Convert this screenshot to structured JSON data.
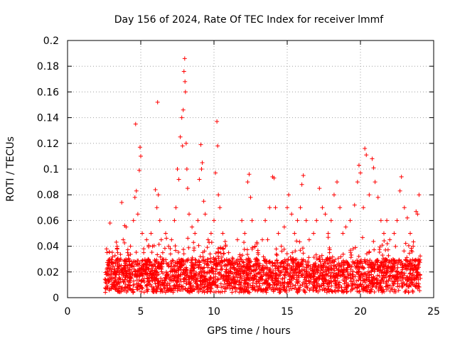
{
  "chart_data": {
    "type": "scatter",
    "title": "Day 156 of 2024, Rate Of TEC Index for receiver lmmf",
    "xlabel": "GPS time / hours",
    "ylabel": "ROTI / TECUs",
    "xlim": [
      0,
      25
    ],
    "ylim": [
      0,
      0.2
    ],
    "x_ticks": [
      "0",
      "5",
      "10",
      "15",
      "20",
      "25"
    ],
    "y_ticks": [
      "0",
      "0.02",
      "0.04",
      "0.06",
      "0.08",
      "0.1",
      "0.12",
      "0.14",
      "0.16",
      "0.18",
      "0.2"
    ],
    "grid": true,
    "marker": "plus",
    "color": "#ff0000",
    "series": [
      {
        "points": [
          [
            2.6,
            0.012
          ],
          [
            2.7,
            0.018
          ],
          [
            2.8,
            0.025
          ],
          [
            2.9,
            0.058
          ],
          [
            3.0,
            0.015
          ],
          [
            3.2,
            0.022
          ],
          [
            3.4,
            0.03
          ],
          [
            3.5,
            0.018
          ],
          [
            3.7,
            0.074
          ],
          [
            3.8,
            0.045
          ],
          [
            3.9,
            0.056
          ],
          [
            4.0,
            0.055
          ],
          [
            4.1,
            0.035
          ],
          [
            4.2,
            0.028
          ],
          [
            4.3,
            0.04
          ],
          [
            4.4,
            0.02
          ],
          [
            4.5,
            0.06
          ],
          [
            4.6,
            0.078
          ],
          [
            4.65,
            0.135
          ],
          [
            4.7,
            0.083
          ],
          [
            4.8,
            0.065
          ],
          [
            4.9,
            0.099
          ],
          [
            4.95,
            0.117
          ],
          [
            5.0,
            0.11
          ],
          [
            5.1,
            0.05
          ],
          [
            5.2,
            0.035
          ],
          [
            5.4,
            0.045
          ],
          [
            5.5,
            0.03
          ],
          [
            5.7,
            0.05
          ],
          [
            5.8,
            0.04
          ],
          [
            6.0,
            0.084
          ],
          [
            6.1,
            0.07
          ],
          [
            6.15,
            0.152
          ],
          [
            6.2,
            0.08
          ],
          [
            6.3,
            0.06
          ],
          [
            6.4,
            0.045
          ],
          [
            6.5,
            0.035
          ],
          [
            6.7,
            0.05
          ],
          [
            6.9,
            0.04
          ],
          [
            7.1,
            0.045
          ],
          [
            7.3,
            0.06
          ],
          [
            7.4,
            0.07
          ],
          [
            7.5,
            0.1
          ],
          [
            7.6,
            0.092
          ],
          [
            7.7,
            0.125
          ],
          [
            7.8,
            0.14
          ],
          [
            7.85,
            0.118
          ],
          [
            7.9,
            0.146
          ],
          [
            7.95,
            0.176
          ],
          [
            8.0,
            0.186
          ],
          [
            8.02,
            0.168
          ],
          [
            8.05,
            0.16
          ],
          [
            8.1,
            0.12
          ],
          [
            8.15,
            0.1
          ],
          [
            8.2,
            0.085
          ],
          [
            8.3,
            0.065
          ],
          [
            8.5,
            0.055
          ],
          [
            8.7,
            0.05
          ],
          [
            8.9,
            0.06
          ],
          [
            9.0,
            0.092
          ],
          [
            9.1,
            0.119
          ],
          [
            9.15,
            0.1
          ],
          [
            9.2,
            0.105
          ],
          [
            9.3,
            0.075
          ],
          [
            9.4,
            0.065
          ],
          [
            9.6,
            0.045
          ],
          [
            9.8,
            0.05
          ],
          [
            10.0,
            0.06
          ],
          [
            10.1,
            0.097
          ],
          [
            10.2,
            0.137
          ],
          [
            10.25,
            0.118
          ],
          [
            10.3,
            0.08
          ],
          [
            10.4,
            0.07
          ],
          [
            10.6,
            0.05
          ],
          [
            10.8,
            0.04
          ],
          [
            11.0,
            0.035
          ],
          [
            11.3,
            0.03
          ],
          [
            11.6,
            0.045
          ],
          [
            11.9,
            0.06
          ],
          [
            12.1,
            0.05
          ],
          [
            12.3,
            0.09
          ],
          [
            12.4,
            0.096
          ],
          [
            12.5,
            0.078
          ],
          [
            12.6,
            0.06
          ],
          [
            12.8,
            0.04
          ],
          [
            13.0,
            0.035
          ],
          [
            13.3,
            0.045
          ],
          [
            13.5,
            0.06
          ],
          [
            13.8,
            0.07
          ],
          [
            14.0,
            0.094
          ],
          [
            14.1,
            0.093
          ],
          [
            14.2,
            0.07
          ],
          [
            14.4,
            0.05
          ],
          [
            14.6,
            0.04
          ],
          [
            14.8,
            0.055
          ],
          [
            15.0,
            0.07
          ],
          [
            15.1,
            0.08
          ],
          [
            15.3,
            0.065
          ],
          [
            15.5,
            0.05
          ],
          [
            15.7,
            0.06
          ],
          [
            15.9,
            0.07
          ],
          [
            16.0,
            0.088
          ],
          [
            16.1,
            0.095
          ],
          [
            16.3,
            0.06
          ],
          [
            16.5,
            0.045
          ],
          [
            16.8,
            0.05
          ],
          [
            17.0,
            0.06
          ],
          [
            17.2,
            0.085
          ],
          [
            17.4,
            0.07
          ],
          [
            17.6,
            0.065
          ],
          [
            17.8,
            0.05
          ],
          [
            18.0,
            0.06
          ],
          [
            18.2,
            0.08
          ],
          [
            18.4,
            0.09
          ],
          [
            18.6,
            0.07
          ],
          [
            18.8,
            0.05
          ],
          [
            19.0,
            0.055
          ],
          [
            19.3,
            0.06
          ],
          [
            19.6,
            0.072
          ],
          [
            19.8,
            0.09
          ],
          [
            19.9,
            0.103
          ],
          [
            20.0,
            0.097
          ],
          [
            20.2,
            0.07
          ],
          [
            20.3,
            0.116
          ],
          [
            20.4,
            0.111
          ],
          [
            20.6,
            0.08
          ],
          [
            20.8,
            0.108
          ],
          [
            20.9,
            0.101
          ],
          [
            21.0,
            0.09
          ],
          [
            21.2,
            0.078
          ],
          [
            21.4,
            0.06
          ],
          [
            21.6,
            0.05
          ],
          [
            21.8,
            0.06
          ],
          [
            22.0,
            0.045
          ],
          [
            22.3,
            0.05
          ],
          [
            22.5,
            0.06
          ],
          [
            22.7,
            0.083
          ],
          [
            22.8,
            0.094
          ],
          [
            23.0,
            0.07
          ],
          [
            23.2,
            0.062
          ],
          [
            23.4,
            0.05
          ],
          [
            23.6,
            0.04
          ],
          [
            23.8,
            0.067
          ],
          [
            23.9,
            0.065
          ],
          [
            24.0,
            0.08
          ]
        ]
      }
    ]
  }
}
